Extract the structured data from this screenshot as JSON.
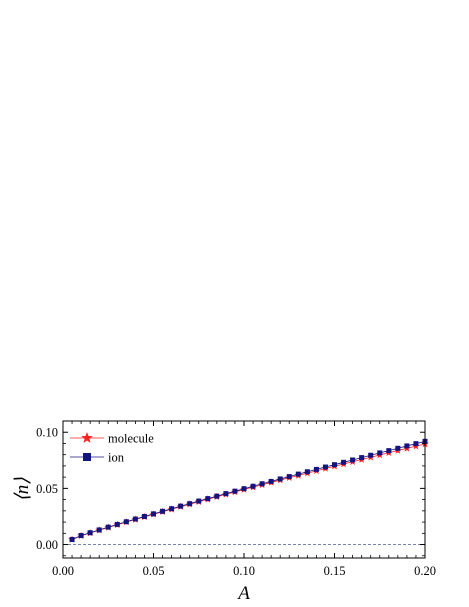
{
  "chart_data": {
    "type": "scatter",
    "xlabel": "A",
    "ylabel": "⟨n⟩",
    "xlim": [
      0.0,
      0.2
    ],
    "ylim": [
      -0.012,
      0.11
    ],
    "x_ticks": [
      "0.00",
      "0.05",
      "0.10",
      "0.15",
      "0.20"
    ],
    "y_ticks": [
      "0.00",
      "0.05",
      "0.10"
    ],
    "grid": false,
    "legend_position": "top-left",
    "reference_line": {
      "y": 0.0,
      "style": "dashed",
      "color": "#4a5a9a"
    },
    "series": [
      {
        "name": "molecule",
        "marker": "star",
        "color": "#ff2020",
        "x": [
          0.005,
          0.01,
          0.015,
          0.02,
          0.025,
          0.03,
          0.035,
          0.04,
          0.045,
          0.05,
          0.055,
          0.06,
          0.065,
          0.07,
          0.075,
          0.08,
          0.085,
          0.09,
          0.095,
          0.1,
          0.105,
          0.11,
          0.115,
          0.12,
          0.125,
          0.13,
          0.135,
          0.14,
          0.145,
          0.15,
          0.155,
          0.16,
          0.165,
          0.17,
          0.175,
          0.18,
          0.185,
          0.19,
          0.195,
          0.2
        ],
        "y": [
          0.0045,
          0.0078,
          0.0103,
          0.0128,
          0.0152,
          0.0176,
          0.02,
          0.0223,
          0.0246,
          0.0269,
          0.0292,
          0.0314,
          0.0337,
          0.0359,
          0.0381,
          0.0403,
          0.0425,
          0.0447,
          0.0468,
          0.049,
          0.0511,
          0.0532,
          0.0553,
          0.0574,
          0.0595,
          0.0615,
          0.0636,
          0.0656,
          0.0677,
          0.0697,
          0.0717,
          0.0737,
          0.0757,
          0.0777,
          0.0797,
          0.0817,
          0.0837,
          0.0856,
          0.0876,
          0.0895
        ]
      },
      {
        "name": "ion",
        "marker": "square",
        "color": "#141480",
        "x": [
          0.005,
          0.01,
          0.015,
          0.02,
          0.025,
          0.03,
          0.035,
          0.04,
          0.045,
          0.05,
          0.055,
          0.06,
          0.065,
          0.07,
          0.075,
          0.08,
          0.085,
          0.09,
          0.095,
          0.1,
          0.105,
          0.11,
          0.115,
          0.12,
          0.125,
          0.13,
          0.135,
          0.14,
          0.145,
          0.15,
          0.155,
          0.16,
          0.165,
          0.17,
          0.175,
          0.18,
          0.185,
          0.19,
          0.195,
          0.2
        ],
        "y": [
          0.0045,
          0.008,
          0.0105,
          0.013,
          0.0155,
          0.0179,
          0.0203,
          0.0227,
          0.025,
          0.0273,
          0.0296,
          0.0319,
          0.0342,
          0.0364,
          0.0387,
          0.0409,
          0.0431,
          0.0453,
          0.0475,
          0.0497,
          0.0519,
          0.0541,
          0.0562,
          0.0584,
          0.0605,
          0.0627,
          0.0648,
          0.0669,
          0.069,
          0.0711,
          0.0732,
          0.0753,
          0.0774,
          0.0795,
          0.0816,
          0.0836,
          0.0857,
          0.0878,
          0.0898,
          0.0919
        ]
      }
    ]
  }
}
